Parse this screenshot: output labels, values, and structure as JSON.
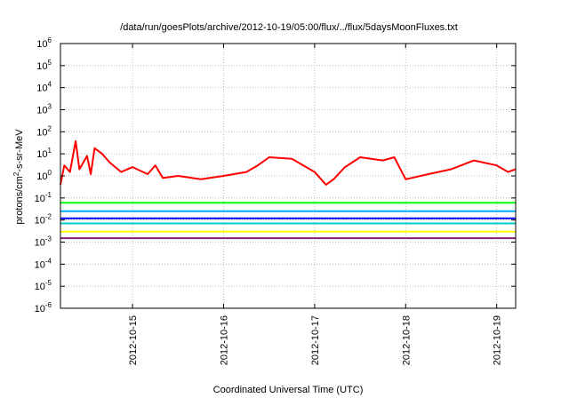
{
  "chart_data": {
    "type": "line",
    "title": "/data/run/goesPlots/archive/2012-10-19/05:00/flux/../flux/5daysMoonFluxes.txt",
    "xlabel": "Coordinated Universal Time (UTC)",
    "ylabel": {
      "base": "protons/cm",
      "sup": "2",
      "rest": "-s-sr-MeV"
    },
    "y_scale": "log",
    "ylim": [
      1e-06,
      1000000.0
    ],
    "y_ticks": [
      {
        "base": "10",
        "exp": "-6",
        "value": 1e-06
      },
      {
        "base": "10",
        "exp": "-5",
        "value": 1e-05
      },
      {
        "base": "10",
        "exp": "-4",
        "value": 0.0001
      },
      {
        "base": "10",
        "exp": "-3",
        "value": 0.001
      },
      {
        "base": "10",
        "exp": "-2",
        "value": 0.01
      },
      {
        "base": "10",
        "exp": "-1",
        "value": 0.1
      },
      {
        "base": "10",
        "exp": "0",
        "value": 1
      },
      {
        "base": "10",
        "exp": "1",
        "value": 10
      },
      {
        "base": "10",
        "exp": "2",
        "value": 100
      },
      {
        "base": "10",
        "exp": "3",
        "value": 1000
      },
      {
        "base": "10",
        "exp": "4",
        "value": 10000
      },
      {
        "base": "10",
        "exp": "5",
        "value": 100000
      },
      {
        "base": "10",
        "exp": "6",
        "value": 1000000
      }
    ],
    "xlim": [
      "2012-10-14 05:00",
      "2012-10-19 05:00"
    ],
    "x_ticks": [
      "2012-10-15",
      "2012-10-16",
      "2012-10-17",
      "2012-10-18",
      "2012-10-19"
    ],
    "grid": true,
    "series": [
      {
        "color": "#ff0000",
        "x": [
          "2012-10-14 05:00",
          "2012-10-14 06:00",
          "2012-10-14 07:30",
          "2012-10-14 09:00",
          "2012-10-14 10:00",
          "2012-10-14 12:00",
          "2012-10-14 13:00",
          "2012-10-14 14:00",
          "2012-10-14 16:00",
          "2012-10-14 18:00",
          "2012-10-14 21:00",
          "2012-10-15 00:00",
          "2012-10-15 04:00",
          "2012-10-15 06:00",
          "2012-10-15 08:00",
          "2012-10-15 12:00",
          "2012-10-15 18:00",
          "2012-10-16 00:00",
          "2012-10-16 06:00",
          "2012-10-16 09:00",
          "2012-10-16 12:00",
          "2012-10-16 18:00",
          "2012-10-17 00:00",
          "2012-10-17 03:00",
          "2012-10-17 05:00",
          "2012-10-17 08:00",
          "2012-10-17 12:00",
          "2012-10-17 18:00",
          "2012-10-17 21:00",
          "2012-10-17 23:00",
          "2012-10-18 00:00",
          "2012-10-18 06:00",
          "2012-10-18 12:00",
          "2012-10-18 18:00",
          "2012-10-19 00:00",
          "2012-10-19 03:00",
          "2012-10-19 05:00"
        ],
        "y": [
          0.4,
          3,
          1.5,
          38,
          2,
          8,
          1.2,
          18,
          10,
          4,
          1.5,
          2.5,
          1.2,
          3,
          0.8,
          1.0,
          0.7,
          1.0,
          1.5,
          3,
          7,
          6,
          1.5,
          0.4,
          0.7,
          2.5,
          7,
          5,
          7,
          1.5,
          0.7,
          1.2,
          2,
          5,
          3,
          1.5,
          2
        ]
      },
      {
        "color": "#00ff00",
        "x": [
          "2012-10-14 05:00",
          "2012-10-19 05:00"
        ],
        "y": [
          0.06,
          0.06
        ]
      },
      {
        "color": "#00aaff",
        "x": [
          "2012-10-14 05:00",
          "2012-10-19 05:00"
        ],
        "y": [
          0.025,
          0.025
        ]
      },
      {
        "color": "#0000ff",
        "x": [
          "2012-10-14 05:00",
          "2012-10-19 05:00"
        ],
        "y": [
          0.012,
          0.012
        ]
      },
      {
        "color": "#00cccc",
        "x": [
          "2012-10-14 05:00",
          "2012-10-19 05:00"
        ],
        "y": [
          0.007,
          0.007
        ]
      },
      {
        "color": "#ffff00",
        "x": [
          "2012-10-14 05:00",
          "2012-10-19 05:00"
        ],
        "y": [
          0.003,
          0.003
        ]
      },
      {
        "color": "#7f1f7f",
        "x": [
          "2012-10-14 05:00",
          "2012-10-19 05:00"
        ],
        "y": [
          0.0015,
          0.0015
        ]
      }
    ]
  }
}
